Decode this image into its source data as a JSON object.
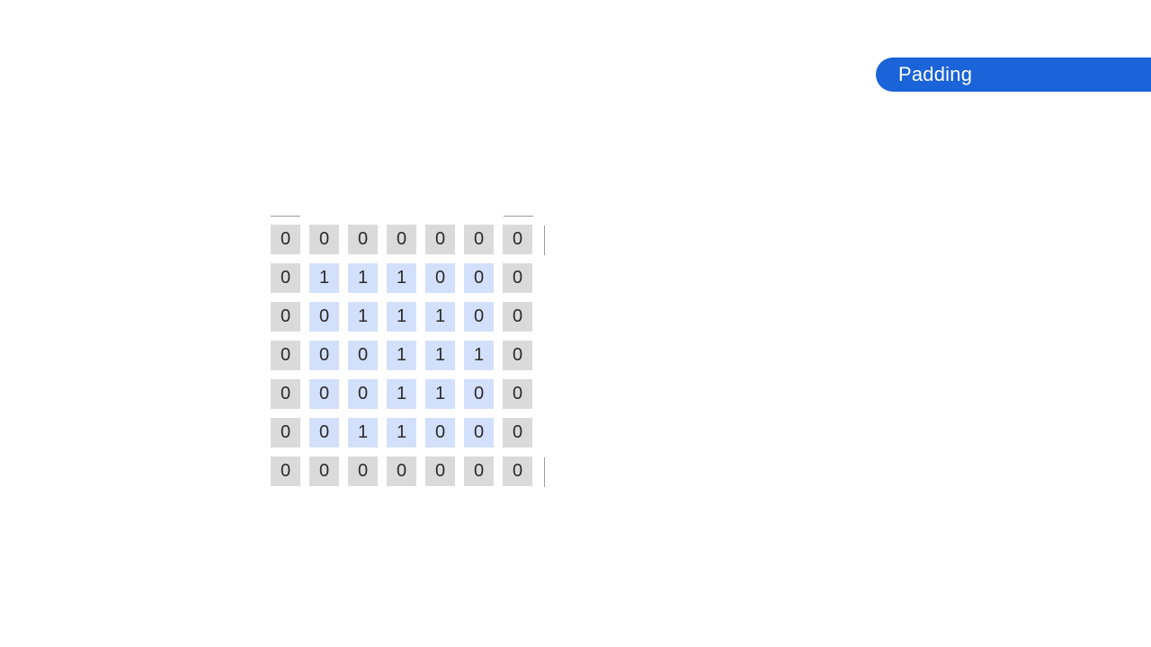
{
  "header": {
    "title": "Padding"
  },
  "matrix": {
    "rows": [
      [
        "0",
        "0",
        "0",
        "0",
        "0",
        "0",
        "0"
      ],
      [
        "0",
        "1",
        "1",
        "1",
        "0",
        "0",
        "0"
      ],
      [
        "0",
        "0",
        "1",
        "1",
        "1",
        "0",
        "0"
      ],
      [
        "0",
        "0",
        "0",
        "1",
        "1",
        "1",
        "0"
      ],
      [
        "0",
        "0",
        "0",
        "1",
        "1",
        "0",
        "0"
      ],
      [
        "0",
        "0",
        "1",
        "1",
        "0",
        "0",
        "0"
      ],
      [
        "0",
        "0",
        "0",
        "0",
        "0",
        "0",
        "0"
      ]
    ],
    "padding_color": "#dadada",
    "inner_color": "#d3e0fb"
  },
  "accent_color": "#1a63d8"
}
